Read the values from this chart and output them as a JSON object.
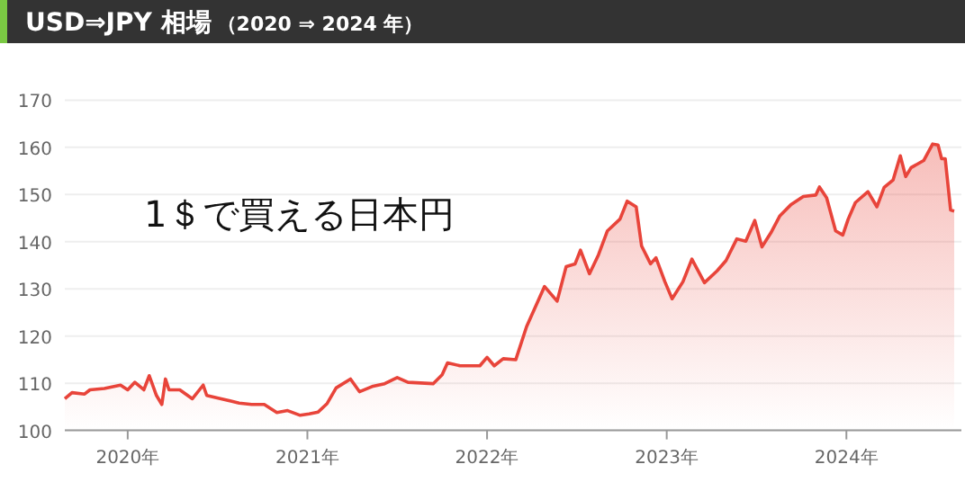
{
  "chart_data": {
    "type": "area",
    "title": "USD⇒JPY 相場",
    "subtitle": "（2020 ⇒ 2024 年）",
    "annotations": [
      "1＄で買える日本円"
    ],
    "x": [
      2019.65,
      2019.69,
      2019.76,
      2019.79,
      2019.87,
      2019.96,
      2020.0,
      2020.04,
      2020.09,
      2020.12,
      2020.16,
      2020.19,
      2020.21,
      2020.23,
      2020.29,
      2020.36,
      2020.42,
      2020.44,
      2020.52,
      2020.62,
      2020.69,
      2020.76,
      2020.83,
      2020.89,
      2020.96,
      2021.01,
      2021.06,
      2021.11,
      2021.16,
      2021.24,
      2021.29,
      2021.36,
      2021.43,
      2021.5,
      2021.56,
      2021.7,
      2021.75,
      2021.78,
      2021.85,
      2021.93,
      2021.96,
      2022.0,
      2022.04,
      2022.09,
      2022.16,
      2022.22,
      2022.32,
      2022.39,
      2022.44,
      2022.49,
      2022.52,
      2022.57,
      2022.62,
      2022.67,
      2022.74,
      2022.78,
      2022.83,
      2022.86,
      2022.91,
      2022.94,
      2022.99,
      2023.03,
      2023.09,
      2023.14,
      2023.21,
      2023.28,
      2023.33,
      2023.39,
      2023.44,
      2023.49,
      2023.53,
      2023.58,
      2023.63,
      2023.69,
      2023.76,
      2023.83,
      2023.85,
      2023.89,
      2023.94,
      2023.98,
      2024.01,
      2024.05,
      2024.12,
      2024.17,
      2024.21,
      2024.26,
      2024.3,
      2024.33,
      2024.36,
      2024.43,
      2024.48,
      2024.51,
      2024.53,
      2024.55,
      2024.58,
      2024.6
    ],
    "series": [
      {
        "color": "#e8443a",
        "values": [
          106.7,
          108.0,
          107.7,
          108.6,
          108.9,
          109.6,
          108.6,
          110.2,
          108.6,
          111.6,
          107.4,
          105.5,
          110.9,
          108.6,
          108.6,
          106.7,
          109.6,
          107.4,
          106.7,
          105.8,
          105.5,
          105.5,
          103.8,
          104.2,
          103.2,
          103.5,
          103.9,
          105.7,
          109.0,
          110.9,
          108.2,
          109.3,
          109.9,
          111.2,
          110.2,
          109.9,
          111.8,
          114.3,
          113.7,
          113.7,
          113.7,
          115.5,
          113.7,
          115.2,
          115.0,
          122.0,
          130.5,
          127.4,
          134.7,
          135.3,
          138.2,
          133.2,
          137.2,
          142.3,
          144.8,
          148.6,
          147.4,
          139.1,
          135.3,
          136.6,
          131.5,
          127.9,
          131.5,
          136.3,
          131.3,
          133.8,
          136.0,
          140.6,
          140.1,
          144.5,
          138.9,
          141.9,
          145.5,
          147.8,
          149.6,
          149.9,
          151.6,
          149.3,
          142.3,
          141.4,
          144.8,
          148.3,
          150.6,
          147.4,
          151.5,
          153.1,
          158.2,
          153.8,
          155.7,
          157.2,
          160.7,
          160.5,
          157.6,
          157.6,
          146.7,
          146.5
        ]
      }
    ],
    "xlim": [
      2019.65,
      2024.64
    ],
    "xticks": [
      {
        "value": 2020,
        "label": "2020年"
      },
      {
        "value": 2021,
        "label": "2021年"
      },
      {
        "value": 2022,
        "label": "2022年"
      },
      {
        "value": 2023,
        "label": "2023年"
      },
      {
        "value": 2024,
        "label": "2024年"
      }
    ],
    "ylim": [
      100,
      170
    ],
    "yticks": [
      100,
      110,
      120,
      130,
      140,
      150,
      160,
      170
    ],
    "grid": "y"
  }
}
